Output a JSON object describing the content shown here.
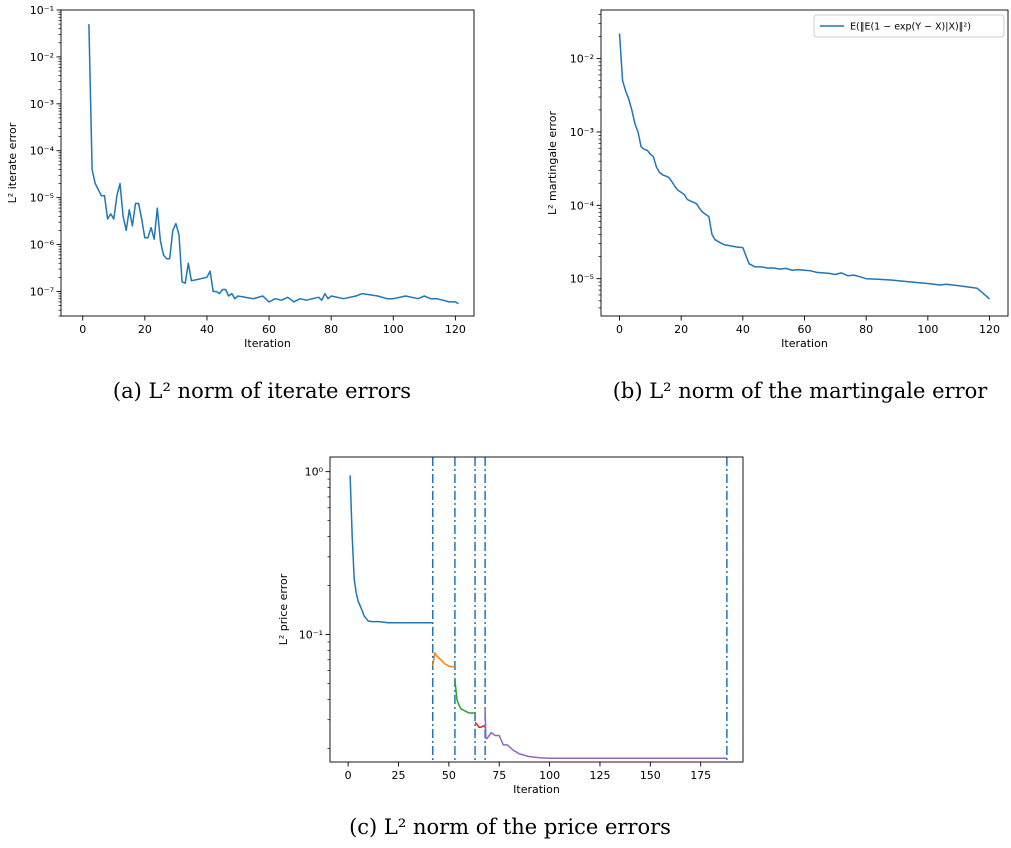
{
  "chart_data": [
    {
      "id": "a",
      "type": "line",
      "xlabel": "Iteration",
      "ylabel": "L² iterate error",
      "yscale": "log",
      "xlim": [
        -7,
        126
      ],
      "ylim": [
        3e-08,
        0.1
      ],
      "xticks": [
        0,
        20,
        40,
        60,
        80,
        100,
        120
      ],
      "yticks": [
        {
          "v": 1e-07,
          "label": "10⁻⁷"
        },
        {
          "v": 1e-06,
          "label": "10⁻⁶"
        },
        {
          "v": 1e-05,
          "label": "10⁻⁵"
        },
        {
          "v": 0.0001,
          "label": "10⁻⁴"
        },
        {
          "v": 0.001,
          "label": "10⁻³"
        },
        {
          "v": 0.01,
          "label": "10⁻²"
        },
        {
          "v": 0.1,
          "label": "10⁻¹"
        }
      ],
      "caption": "(a) L² norm of iterate errors",
      "series": [
        {
          "color": "#1f77b4",
          "x": [
            2,
            3,
            4,
            6,
            7,
            8,
            9,
            10,
            11,
            12,
            13,
            14,
            15,
            16,
            17,
            18,
            19,
            20,
            21,
            22,
            23,
            24,
            25,
            26,
            27,
            28,
            29,
            30,
            31,
            32,
            33,
            34,
            35,
            36,
            40,
            41,
            42,
            43,
            44,
            45,
            46,
            47,
            48,
            49,
            50,
            55,
            58,
            60,
            62,
            64,
            66,
            68,
            70,
            72,
            74,
            76,
            77,
            78,
            79,
            80,
            84,
            88,
            90,
            95,
            98,
            100,
            104,
            108,
            110,
            112,
            114,
            116,
            118,
            120,
            121
          ],
          "y": [
            0.05,
            4e-05,
            2e-05,
            1.1e-05,
            1.1e-05,
            3.5e-06,
            4.5e-06,
            3.5e-06,
            1.1e-05,
            2e-05,
            4e-06,
            2e-06,
            5.5e-06,
            2.5e-06,
            7.5e-06,
            7.5e-06,
            3.5e-06,
            1.4e-06,
            1.4e-06,
            2.3e-06,
            1.3e-06,
            6e-06,
            1.2e-06,
            6e-07,
            5e-07,
            5e-07,
            2e-06,
            2.8e-06,
            1.6e-06,
            1.6e-07,
            1.5e-07,
            4e-07,
            1.7e-07,
            1.75e-07,
            2e-07,
            2.7e-07,
            1e-07,
            1e-07,
            9e-08,
            1.1e-07,
            1.1e-07,
            8e-08,
            9e-08,
            7e-08,
            8e-08,
            7e-08,
            8e-08,
            6e-08,
            7e-08,
            6.5e-08,
            7.5e-08,
            6e-08,
            7e-08,
            6.5e-08,
            7e-08,
            7.5e-08,
            6.5e-08,
            9e-08,
            7e-08,
            8e-08,
            7e-08,
            8e-08,
            9e-08,
            8e-08,
            7e-08,
            7e-08,
            8e-08,
            7e-08,
            8e-08,
            7e-08,
            7e-08,
            6.5e-08,
            6e-08,
            6e-08,
            5.5e-08
          ]
        }
      ]
    },
    {
      "id": "b",
      "type": "line",
      "xlabel": "Iteration",
      "ylabel": "L² martingale error",
      "yscale": "log",
      "xlim": [
        -6,
        126
      ],
      "ylim": [
        3.1e-06,
        0.046
      ],
      "xticks": [
        0,
        20,
        40,
        60,
        80,
        100,
        120
      ],
      "yticks": [
        {
          "v": 1e-05,
          "label": "10⁻⁵"
        },
        {
          "v": 0.0001,
          "label": "10⁻⁴"
        },
        {
          "v": 0.001,
          "label": "10⁻³"
        },
        {
          "v": 0.01,
          "label": "10⁻²"
        }
      ],
      "legend": "E(‖E(1 − exp(Y − X)|X)‖²)",
      "legend_loc": "top-right",
      "caption": "(b) L² norm of the martingale error",
      "series": [
        {
          "color": "#1f77b4",
          "x": [
            0,
            1,
            2,
            3,
            4,
            5,
            6,
            7,
            8,
            9,
            10,
            11,
            12,
            13,
            14,
            15,
            16,
            17,
            18,
            19,
            20,
            21,
            22,
            23,
            24,
            25,
            26,
            27,
            28,
            29,
            30,
            31,
            32,
            34,
            36,
            38,
            40,
            42,
            44,
            46,
            48,
            50,
            52,
            54,
            56,
            58,
            60,
            62,
            64,
            66,
            68,
            70,
            72,
            74,
            76,
            78,
            80,
            84,
            88,
            92,
            96,
            100,
            104,
            106,
            110,
            114,
            116,
            118,
            120
          ],
          "y": [
            0.022,
            0.005,
            0.0036,
            0.0028,
            0.002,
            0.0013,
            0.001,
            0.00063,
            0.00058,
            0.00056,
            0.0005,
            0.00046,
            0.00033,
            0.00028,
            0.00026,
            0.00025,
            0.00024,
            0.00021,
            0.00018,
            0.00016,
            0.00015,
            0.00014,
            0.00012,
            0.000115,
            0.00011,
            0.000105,
            9e-05,
            8e-05,
            7.5e-05,
            7e-05,
            4e-05,
            3.4e-05,
            3.2e-05,
            2.9e-05,
            2.8e-05,
            2.7e-05,
            2.65e-05,
            1.6e-05,
            1.45e-05,
            1.45e-05,
            1.4e-05,
            1.4e-05,
            1.35e-05,
            1.38e-05,
            1.3e-05,
            1.33e-05,
            1.3e-05,
            1.28e-05,
            1.22e-05,
            1.2e-05,
            1.18e-05,
            1.14e-05,
            1.2e-05,
            1.1e-05,
            1.12e-05,
            1.06e-05,
            1e-05,
            9.8e-06,
            9.6e-06,
            9.2e-06,
            8.9e-06,
            8.6e-06,
            8.2e-06,
            8.4e-06,
            8e-06,
            7.6e-06,
            7.4e-06,
            6.3e-06,
            5.3e-06
          ]
        }
      ]
    },
    {
      "id": "c",
      "type": "line",
      "xlabel": "Iteration",
      "ylabel": "L² price error",
      "yscale": "log",
      "xlim": [
        -9,
        196
      ],
      "ylim": [
        0.0165,
        1.23
      ],
      "xticks": [
        0,
        25,
        50,
        75,
        100,
        125,
        150,
        175
      ],
      "yticks": [
        {
          "v": 0.1,
          "label": "10⁻¹"
        },
        {
          "v": 1,
          "label": "10⁰"
        }
      ],
      "vlines": [
        42,
        53,
        63,
        68,
        188
      ],
      "caption": "(c) L² norm of the price errors",
      "series": [
        {
          "color": "#1f77b4",
          "x": [
            1,
            2,
            3,
            4,
            5,
            6,
            7,
            8,
            9,
            10,
            12,
            15,
            20,
            30,
            42
          ],
          "y": [
            0.95,
            0.4,
            0.22,
            0.18,
            0.16,
            0.15,
            0.14,
            0.13,
            0.125,
            0.121,
            0.12,
            0.12,
            0.118,
            0.118,
            0.118
          ]
        },
        {
          "color": "#ff7f0e",
          "x": [
            42,
            43,
            44,
            46,
            48,
            50,
            53
          ],
          "y": [
            0.064,
            0.077,
            0.074,
            0.07,
            0.066,
            0.064,
            0.063
          ]
        },
        {
          "color": "#2ca02c",
          "x": [
            53,
            54,
            55,
            56,
            58,
            60,
            63
          ],
          "y": [
            0.053,
            0.04,
            0.037,
            0.035,
            0.034,
            0.033,
            0.033
          ]
        },
        {
          "color": "#d62728",
          "x": [
            63,
            64,
            65,
            66,
            67,
            68
          ],
          "y": [
            0.029,
            0.028,
            0.027,
            0.027,
            0.0275,
            0.027
          ]
        },
        {
          "color": "#9467bd",
          "x": [
            68,
            68.4,
            69,
            71,
            73,
            75,
            77,
            79,
            82,
            85,
            90,
            95,
            100,
            120,
            150,
            188
          ],
          "y": [
            0.035,
            0.023,
            0.023,
            0.025,
            0.024,
            0.024,
            0.021,
            0.021,
            0.0195,
            0.0185,
            0.0178,
            0.0175,
            0.0174,
            0.0174,
            0.0174,
            0.0174
          ]
        }
      ]
    }
  ]
}
